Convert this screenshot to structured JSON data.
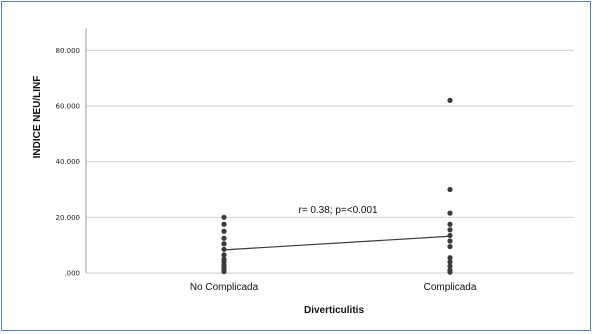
{
  "chart_data": {
    "type": "scatter",
    "title": "",
    "xlabel": "Diverticulitis",
    "ylabel": "INDICE NEU/LINF",
    "categories": [
      "No Complicada",
      "Complicada"
    ],
    "ylim": [
      0,
      88
    ],
    "yticks": [
      0,
      20,
      40,
      60,
      80
    ],
    "ytick_labels": [
      ".000",
      "20.000",
      "40.000",
      "60.000",
      "80.000"
    ],
    "grid": true,
    "points": [
      {
        "category": "No Complicada",
        "values": [
          20.0,
          17.5,
          15.0,
          12.5,
          10.5,
          8.5,
          6.5,
          5.0,
          4.0,
          3.0,
          2.0,
          1.2,
          0.5
        ]
      },
      {
        "category": "Complicada",
        "values": [
          62.0,
          30.0,
          21.5,
          17.5,
          15.5,
          13.5,
          11.5,
          9.5,
          5.5,
          4.0,
          2.5,
          1.0,
          0.3
        ]
      }
    ],
    "mean_line": [
      {
        "category": "No Complicada",
        "value": 8.3
      },
      {
        "category": "Complicada",
        "value": 13.2
      }
    ],
    "annotation": "r= 0.38; p=<0.001",
    "point_color": "#3b3b3b",
    "line_color": "#3b3b3b",
    "grid_color": "#cfcfcf"
  }
}
